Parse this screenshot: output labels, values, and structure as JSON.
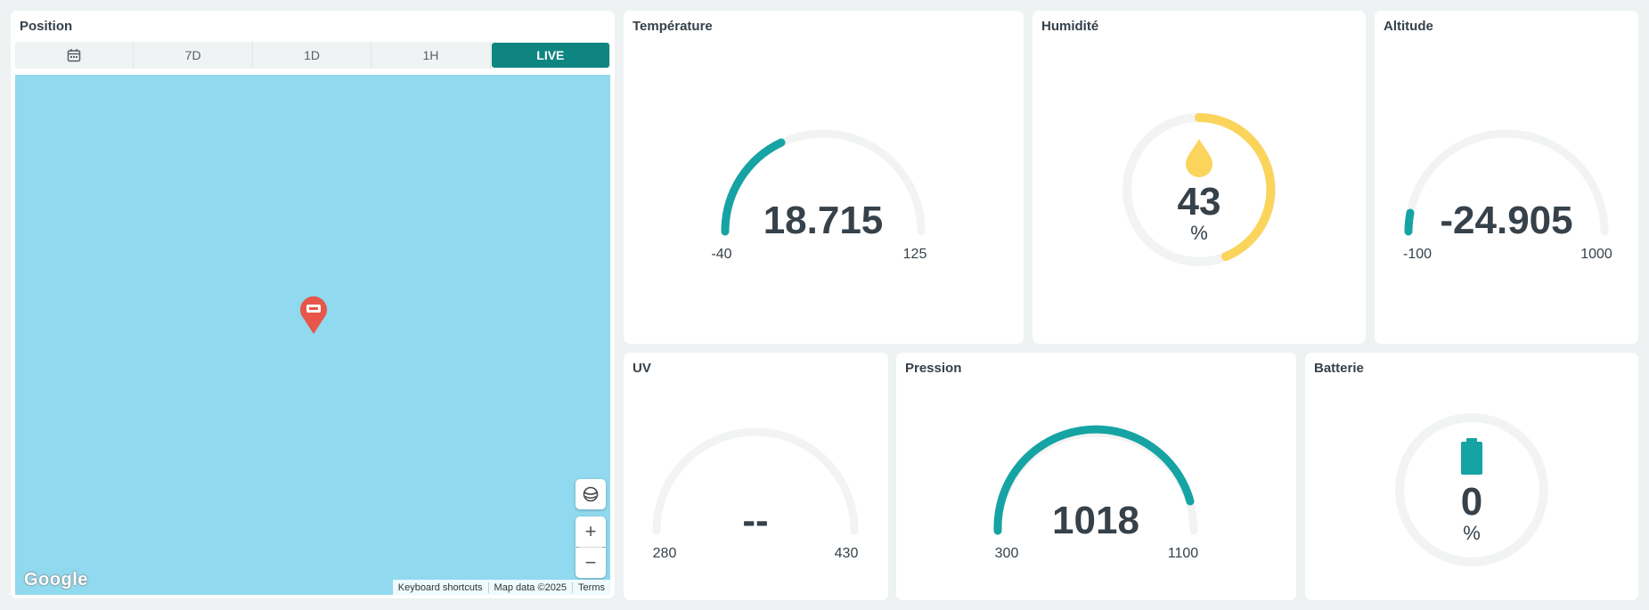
{
  "map": {
    "title": "Position",
    "time_options": [
      "7D",
      "1D",
      "1H",
      "LIVE"
    ],
    "active_option": "LIVE",
    "zoom_in": "+",
    "zoom_out": "−",
    "logo": "Google",
    "footer": [
      "Keyboard shortcuts",
      "Map data ©2025",
      "Terms"
    ],
    "icons": [
      "calendar-icon",
      "location-pin-icon",
      "globe-icon"
    ]
  },
  "widgets": {
    "temperature": {
      "title": "Température",
      "value": "18.715",
      "min": "-40",
      "max": "125",
      "color": "#16a3a3"
    },
    "humidity": {
      "title": "Humidité",
      "value": "43",
      "unit": "%",
      "level": 43,
      "color": "#fbd45c",
      "icon": "water-drop-icon"
    },
    "altitude": {
      "title": "Altitude",
      "value": "-24.905",
      "min": "-100",
      "max": "1000",
      "color": "#16a3a3"
    },
    "uv": {
      "title": "UV",
      "value": "--",
      "min": "280",
      "max": "430",
      "color": "#16a3a3"
    },
    "pressure": {
      "title": "Pression",
      "value": "1018",
      "min": "300",
      "max": "1100",
      "color": "#16a3a3"
    },
    "battery": {
      "title": "Batterie",
      "value": "0",
      "unit": "%",
      "level": 0,
      "color": "#16a3a3",
      "icon": "battery-icon"
    }
  },
  "colors": {
    "track": "#f2f3f3",
    "accent": "#0f8581",
    "pin": "#e8554a"
  }
}
